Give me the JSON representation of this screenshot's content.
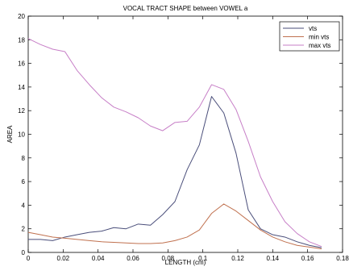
{
  "chart_data": {
    "type": "line",
    "title": "VOCAL TRACT SHAPE between VOWEL a",
    "xlabel": "LENGTH (cm)",
    "ylabel": "AREA",
    "xlim": [
      0,
      0.18
    ],
    "ylim": [
      0,
      20
    ],
    "xticks": [
      0,
      0.02,
      0.04,
      0.06,
      0.08,
      0.1,
      0.12,
      0.14,
      0.16,
      0.18
    ],
    "xtick_labels": [
      "0",
      "0.02",
      "0.04",
      "0.06",
      "0.08",
      "0.1",
      "0.12",
      "0.14",
      "0.16",
      "0.18"
    ],
    "yticks": [
      0,
      2,
      4,
      6,
      8,
      10,
      12,
      14,
      16,
      18,
      20
    ],
    "ytick_labels": [
      "0",
      "2",
      "4",
      "6",
      "8",
      "10",
      "12",
      "14",
      "16",
      "18",
      "20"
    ],
    "grid": false,
    "legend_position": "top-right",
    "series": [
      {
        "name": "vts",
        "color": "#4a4e7a",
        "x": [
          0,
          0.007,
          0.014,
          0.021,
          0.028,
          0.035,
          0.042,
          0.049,
          0.056,
          0.063,
          0.07,
          0.077,
          0.084,
          0.091,
          0.098,
          0.105,
          0.112,
          0.119,
          0.126,
          0.133,
          0.14,
          0.147,
          0.154,
          0.161,
          0.168
        ],
        "values": [
          1.1,
          1.1,
          1.0,
          1.3,
          1.5,
          1.7,
          1.8,
          2.1,
          2.0,
          2.4,
          2.3,
          3.2,
          4.3,
          7.0,
          9.1,
          13.2,
          11.8,
          8.4,
          3.6,
          2.0,
          1.5,
          1.3,
          0.9,
          0.6,
          0.4
        ]
      },
      {
        "name": "min vts",
        "color": "#c0714f",
        "x": [
          0,
          0.007,
          0.014,
          0.021,
          0.028,
          0.035,
          0.042,
          0.049,
          0.056,
          0.063,
          0.07,
          0.077,
          0.084,
          0.091,
          0.098,
          0.105,
          0.112,
          0.119,
          0.126,
          0.133,
          0.14,
          0.147,
          0.154,
          0.161,
          0.168
        ],
        "values": [
          1.7,
          1.5,
          1.3,
          1.2,
          1.1,
          1.0,
          0.9,
          0.85,
          0.8,
          0.75,
          0.75,
          0.8,
          1.0,
          1.3,
          1.9,
          3.3,
          4.1,
          3.5,
          2.7,
          1.9,
          1.3,
          0.9,
          0.6,
          0.45,
          0.3
        ]
      },
      {
        "name": "max vts",
        "color": "#c77fc7",
        "x": [
          0,
          0.007,
          0.014,
          0.021,
          0.028,
          0.035,
          0.042,
          0.049,
          0.056,
          0.063,
          0.07,
          0.077,
          0.084,
          0.091,
          0.098,
          0.105,
          0.112,
          0.119,
          0.126,
          0.133,
          0.14,
          0.147,
          0.154,
          0.161,
          0.168
        ],
        "values": [
          18.1,
          17.6,
          17.2,
          17.0,
          15.4,
          14.2,
          13.1,
          12.3,
          11.9,
          11.4,
          10.7,
          10.3,
          11.0,
          11.1,
          12.3,
          14.2,
          13.8,
          12.1,
          9.4,
          6.4,
          4.3,
          2.6,
          1.6,
          0.9,
          0.5
        ]
      }
    ]
  }
}
